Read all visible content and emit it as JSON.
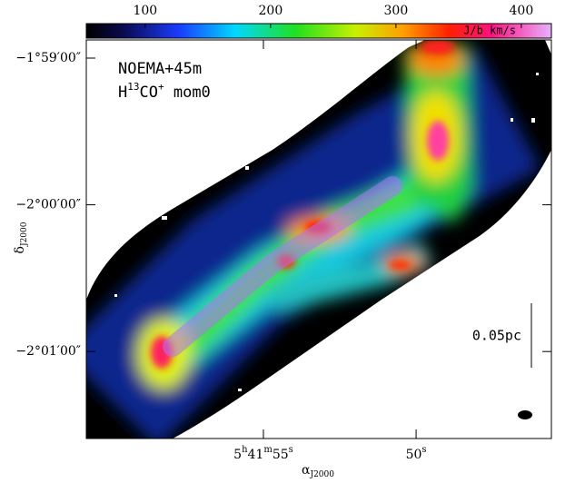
{
  "chart_data": {
    "type": "image",
    "annotation_lines": [
      "NOEMA+45m",
      [
        "H",
        "13",
        "CO",
        "+",
        " mom0"
      ]
    ],
    "scale_bar_label": "0.05pc",
    "colorbar": {
      "label": "J/b km/s",
      "clim": [
        53,
        424
      ],
      "ticks": [
        100,
        200,
        300,
        400
      ]
    },
    "xlabel": [
      "α",
      "J2000"
    ],
    "ylabel": [
      "δ",
      "J2000"
    ],
    "xlim": [
      85.503333,
      85.439875
    ],
    "xticks": [
      {
        "value": 85.479167,
        "label": "5h41m55s"
      },
      {
        "value": 85.458333,
        "label": "50s"
      }
    ],
    "ylim": [
      -2.02655,
      -1.98127
    ],
    "yticks": [
      {
        "value": -1.983333,
        "label": "−1°59′00″"
      },
      {
        "value": -2.0,
        "label": "−2°00′00″"
      },
      {
        "value": -2.016667,
        "label": "−2°01′00″"
      }
    ]
  }
}
